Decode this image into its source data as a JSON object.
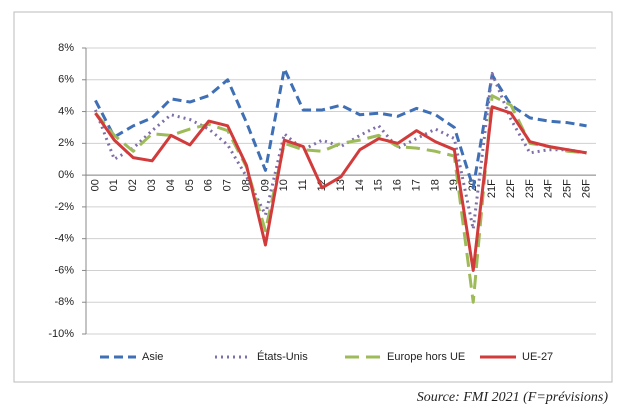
{
  "chart_data": {
    "type": "line",
    "source": "Source: FMI 2021 (F=prévisions)",
    "categories": [
      "00",
      "01",
      "02",
      "03",
      "04",
      "05",
      "06",
      "07",
      "08",
      "09",
      "10",
      "11",
      "12",
      "13",
      "14",
      "15",
      "16",
      "17",
      "18",
      "19",
      "20",
      "21F",
      "22F",
      "23F",
      "24F",
      "25F",
      "26F"
    ],
    "series": [
      {
        "name": "Asie",
        "color": "#3f6fb5",
        "dash": "9,5",
        "values": [
          4.7,
          2.4,
          3.1,
          3.6,
          4.8,
          4.6,
          5.0,
          6.0,
          3.3,
          0.3,
          6.7,
          4.1,
          4.1,
          4.4,
          3.8,
          3.9,
          3.7,
          4.2,
          3.8,
          3.0,
          -0.8,
          6.3,
          4.4,
          3.6,
          3.4,
          3.3,
          3.1
        ]
      },
      {
        "name": "États-Unis",
        "color": "#7f6fa8",
        "dash": "2,4",
        "values": [
          4.1,
          1.0,
          1.7,
          2.8,
          3.8,
          3.5,
          2.9,
          1.9,
          -0.1,
          -2.5,
          2.6,
          1.6,
          2.2,
          1.8,
          2.5,
          3.1,
          1.7,
          2.3,
          2.9,
          2.3,
          -3.4,
          6.4,
          3.5,
          1.4,
          1.6,
          1.6,
          1.4
        ]
      },
      {
        "name": "Europe hors UE",
        "color": "#9dbb59",
        "dash": "14,7",
        "values": [
          3.9,
          2.5,
          1.5,
          2.6,
          2.5,
          2.9,
          3.2,
          2.8,
          0.5,
          -3.5,
          2.0,
          1.6,
          1.5,
          2.0,
          2.2,
          2.5,
          1.8,
          1.7,
          1.5,
          1.2,
          -8.0,
          5.0,
          4.4,
          2.0,
          1.8,
          1.5,
          1.4
        ]
      },
      {
        "name": "UE-27",
        "color": "#d23b3b",
        "dash": "none",
        "values": [
          3.9,
          2.2,
          1.1,
          0.9,
          2.5,
          1.9,
          3.4,
          3.1,
          0.6,
          -4.4,
          2.2,
          1.8,
          -0.8,
          -0.1,
          1.6,
          2.3,
          2.0,
          2.8,
          2.1,
          1.6,
          -6.0,
          4.3,
          3.9,
          2.1,
          1.8,
          1.6,
          1.4
        ]
      }
    ],
    "ylim": [
      -10,
      8
    ],
    "yticks": [
      {
        "value": -10,
        "label": "-10%"
      },
      {
        "value": -8,
        "label": "-8%"
      },
      {
        "value": -6,
        "label": "-6%"
      },
      {
        "value": -4,
        "label": "-4%"
      },
      {
        "value": -2,
        "label": "-2%"
      },
      {
        "value": 0,
        "label": "0%"
      },
      {
        "value": 2,
        "label": "2%"
      },
      {
        "value": 4,
        "label": "4%"
      },
      {
        "value": 6,
        "label": "6%"
      },
      {
        "value": 8,
        "label": "8%"
      }
    ],
    "grid": true,
    "legend": "bottom"
  }
}
